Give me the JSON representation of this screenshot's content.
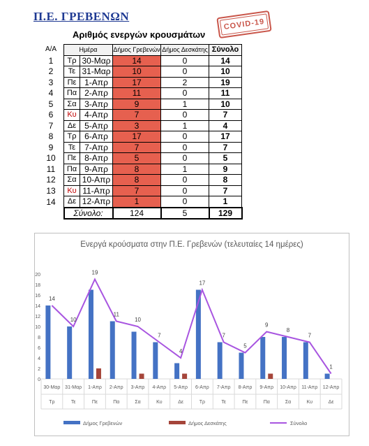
{
  "header": {
    "title": "Π.Ε. ΓΡΕΒΕΝΩΝ",
    "stamp_text": "COVID-19"
  },
  "table": {
    "title": "Αριθμός ενεργών κρουσμάτων",
    "col_index": "Α/Α",
    "col_date": "Ημέρα",
    "col_grevena": "Δήμος Γρεβενών",
    "col_deskati": "Δήμος Δεσκάτης",
    "col_total": "Σύνολο",
    "rows": [
      {
        "idx": "1",
        "day": "Τρ",
        "date": "30-Μαρ",
        "grevena": "14",
        "deskati": "0",
        "total": "14"
      },
      {
        "idx": "2",
        "day": "Τε",
        "date": "31-Μαρ",
        "grevena": "10",
        "deskati": "0",
        "total": "10"
      },
      {
        "idx": "3",
        "day": "Πε",
        "date": "1-Απρ",
        "grevena": "17",
        "deskati": "2",
        "total": "19"
      },
      {
        "idx": "4",
        "day": "Πα",
        "date": "2-Απρ",
        "grevena": "11",
        "deskati": "0",
        "total": "11"
      },
      {
        "idx": "5",
        "day": "Σα",
        "date": "3-Απρ",
        "grevena": "9",
        "deskati": "1",
        "total": "10"
      },
      {
        "idx": "6",
        "day": "Κυ",
        "date": "4-Απρ",
        "grevena": "7",
        "deskati": "0",
        "total": "7"
      },
      {
        "idx": "7",
        "day": "Δε",
        "date": "5-Απρ",
        "grevena": "3",
        "deskati": "1",
        "total": "4"
      },
      {
        "idx": "8",
        "day": "Τρ",
        "date": "6-Απρ",
        "grevena": "17",
        "deskati": "0",
        "total": "17"
      },
      {
        "idx": "9",
        "day": "Τε",
        "date": "7-Απρ",
        "grevena": "7",
        "deskati": "0",
        "total": "7"
      },
      {
        "idx": "10",
        "day": "Πε",
        "date": "8-Απρ",
        "grevena": "5",
        "deskati": "0",
        "total": "5"
      },
      {
        "idx": "11",
        "day": "Πα",
        "date": "9-Απρ",
        "grevena": "8",
        "deskati": "1",
        "total": "9"
      },
      {
        "idx": "12",
        "day": "Σα",
        "date": "10-Απρ",
        "grevena": "8",
        "deskati": "0",
        "total": "8"
      },
      {
        "idx": "13",
        "day": "Κυ",
        "date": "11-Απρ",
        "grevena": "7",
        "deskati": "0",
        "total": "7"
      },
      {
        "idx": "14",
        "day": "Δε",
        "date": "12-Απρ",
        "grevena": "1",
        "deskati": "0",
        "total": "1"
      }
    ],
    "sum_label": "Σύνολο:",
    "sum_grevena": "124",
    "sum_deskati": "5",
    "sum_total": "129",
    "sunday_color": "#c00000",
    "grevena_fill": "#e6604f"
  },
  "chart_data": {
    "type": "bar+line",
    "title": "Ενεργά κρούσματα στην Π.Ε. Γρεβενών (τελευταίες 14 ημέρες)",
    "categories": [
      "30-Μαρ",
      "31-Μαρ",
      "1-Απρ",
      "2-Απρ",
      "3-Απρ",
      "4-Απρ",
      "5-Απρ",
      "6-Απρ",
      "7-Απρ",
      "8-Απρ",
      "9-Απρ",
      "10-Απρ",
      "11-Απρ",
      "12-Απρ"
    ],
    "weekdays": [
      "Τρ",
      "Τε",
      "Πε",
      "Πα",
      "Σα",
      "Κυ",
      "Δε",
      "Τρ",
      "Τε",
      "Πε",
      "Πα",
      "Σα",
      "Κυ",
      "Δε"
    ],
    "series": [
      {
        "name": "Δήμος Γρεβενών",
        "type": "bar",
        "color": "#4472c4",
        "values": [
          14,
          10,
          17,
          11,
          9,
          7,
          3,
          17,
          7,
          5,
          8,
          8,
          7,
          1
        ]
      },
      {
        "name": "Δήμος Δεσκάτης",
        "type": "bar",
        "color": "#a5453a",
        "values": [
          0,
          0,
          2,
          0,
          1,
          0,
          1,
          0,
          0,
          0,
          1,
          0,
          0,
          0
        ]
      },
      {
        "name": "Σύνολο",
        "type": "line",
        "color": "#a855e0",
        "values": [
          14,
          10,
          19,
          11,
          10,
          7,
          4,
          17,
          7,
          5,
          9,
          8,
          7,
          1
        ]
      }
    ],
    "ylim": [
      0,
      20
    ],
    "yticks": [
      "0",
      "2",
      "4",
      "6",
      "8",
      "10",
      "12",
      "14",
      "16",
      "18",
      "20"
    ],
    "grid": false,
    "legend": "bottom"
  }
}
